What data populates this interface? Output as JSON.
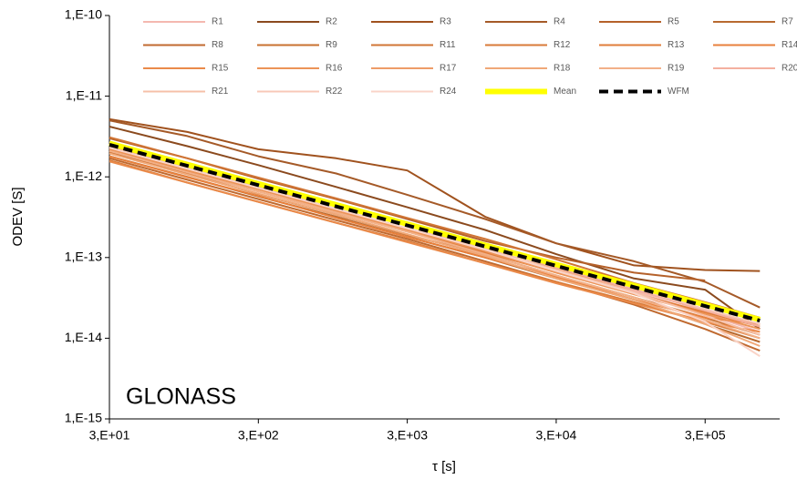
{
  "chart_data": {
    "type": "line",
    "annotation": "GLONASS",
    "x_label": "τ [s]",
    "y_label": "ODEV [S]",
    "xscale": "log",
    "yscale": "log",
    "grid": false,
    "xlim": [
      30,
      950000
    ],
    "ylim": [
      1e-15,
      1e-10
    ],
    "xticks": [
      {
        "value": 30,
        "label": "3,E+01"
      },
      {
        "value": 300,
        "label": "3,E+02"
      },
      {
        "value": 3000,
        "label": "3,E+03"
      },
      {
        "value": 30000,
        "label": "3,E+04"
      },
      {
        "value": 300000,
        "label": "3,E+05"
      }
    ],
    "yticks": [
      {
        "value": 1e-10,
        "label": "1,E-10"
      },
      {
        "value": 1e-11,
        "label": "1,E-11"
      },
      {
        "value": 1e-12,
        "label": "1,E-12"
      },
      {
        "value": 1e-13,
        "label": "1,E-13"
      },
      {
        "value": 1e-14,
        "label": "1,E-14"
      },
      {
        "value": 1e-15,
        "label": "1,E-15"
      }
    ],
    "x": [
      30,
      100,
      300,
      1000,
      3000,
      10000,
      30000,
      100000,
      300000,
      700000
    ],
    "series": [
      {
        "name": "R1",
        "color": "#f4b8b0",
        "values": [
          2.3e-12,
          1.3e-12,
          7.4e-13,
          4e-13,
          2.3e-13,
          1.3e-13,
          7e-14,
          3.8e-14,
          2e-14,
          1.2e-14
        ]
      },
      {
        "name": "R2",
        "color": "#8b4a1e",
        "values": [
          4.2e-12,
          2.4e-12,
          1.4e-12,
          7.5e-13,
          4.2e-13,
          2.2e-13,
          1.1e-13,
          5.5e-14,
          4e-14,
          1.3e-14
        ]
      },
      {
        "name": "R3",
        "color": "#a0521e",
        "values": [
          5.2e-12,
          3.6e-12,
          2.2e-12,
          1.7e-12,
          1.2e-12,
          3.2e-13,
          1.5e-13,
          8e-14,
          7e-14,
          6.8e-14
        ]
      },
      {
        "name": "R4",
        "color": "#a55a28",
        "values": [
          5e-12,
          3.2e-12,
          1.8e-12,
          1.1e-12,
          6e-13,
          3e-13,
          1.5e-13,
          9e-14,
          5e-14,
          2.4e-14
        ]
      },
      {
        "name": "R5",
        "color": "#b5612a",
        "values": [
          3e-12,
          1.7e-12,
          9.5e-13,
          5.3e-13,
          3e-13,
          1.6e-13,
          1e-13,
          6.5e-14,
          5.2e-14,
          null
        ]
      },
      {
        "name": "R7",
        "color": "#b86a30",
        "values": [
          1.8e-12,
          1e-12,
          5.7e-13,
          3.2e-13,
          1.8e-13,
          1e-13,
          5.5e-14,
          3e-14,
          1.5e-14,
          9e-15
        ]
      },
      {
        "name": "R8",
        "color": "#c06a30",
        "values": [
          1.7e-12,
          9.2e-13,
          5.3e-13,
          2.9e-13,
          1.7e-13,
          9e-14,
          5e-14,
          2.6e-14,
          1.3e-14,
          7e-15
        ]
      },
      {
        "name": "R9",
        "color": "#c87030",
        "values": [
          2e-12,
          1.1e-12,
          6.1e-13,
          3.4e-13,
          1.9e-13,
          1.1e-13,
          6e-14,
          3.2e-14,
          1.8e-14,
          1.1e-14
        ]
      },
      {
        "name": "R11",
        "color": "#d07535",
        "values": [
          3.1e-12,
          1.7e-12,
          9.8e-13,
          5.4e-13,
          3.1e-13,
          1.7e-13,
          9.5e-14,
          4.8e-14,
          2.8e-14,
          1.8e-14
        ]
      },
      {
        "name": "R12",
        "color": "#d87a38",
        "values": [
          1.6e-12,
          8.5e-13,
          4.9e-13,
          2.7e-13,
          1.6e-13,
          8.5e-14,
          5e-14,
          2.8e-14,
          1.6e-14,
          1e-14
        ]
      },
      {
        "name": "R13",
        "color": "#e07c3a",
        "values": [
          2.1e-12,
          1.15e-12,
          6.6e-13,
          3.6e-13,
          2.1e-13,
          1.15e-13,
          6.6e-14,
          3.6e-14,
          2.1e-14,
          1.4e-14
        ]
      },
      {
        "name": "R14",
        "color": "#e8803c",
        "values": [
          1.8e-12,
          9.9e-13,
          5.8e-13,
          3.1e-13,
          1.8e-13,
          1e-13,
          5.8e-14,
          3e-14,
          1.8e-14,
          1.5e-14
        ]
      },
      {
        "name": "R15",
        "color": "#ea8a4a",
        "values": [
          1.55e-12,
          8.5e-13,
          4.9e-13,
          2.7e-13,
          1.55e-13,
          8.5e-14,
          4.8e-14,
          2.7e-14,
          1.6e-14,
          1.2e-14
        ]
      },
      {
        "name": "R16",
        "color": "#ec9458",
        "values": [
          2.2e-12,
          1.2e-12,
          7e-13,
          3.8e-13,
          2.2e-13,
          1.2e-13,
          6.5e-14,
          3.5e-14,
          2e-14,
          1.3e-14
        ]
      },
      {
        "name": "R17",
        "color": "#ee9c68",
        "values": [
          2.35e-12,
          1.3e-12,
          7.4e-13,
          4e-13,
          2.3e-13,
          1.25e-13,
          7.2e-14,
          4e-14,
          2.2e-14,
          1.5e-14
        ]
      },
      {
        "name": "R18",
        "color": "#f0a878",
        "values": [
          1.95e-12,
          1.07e-12,
          6.2e-13,
          3.4e-13,
          1.95e-13,
          1.05e-13,
          5.5e-14,
          3e-14,
          1.5e-14,
          8e-15
        ]
      },
      {
        "name": "R19",
        "color": "#f2b088",
        "values": [
          2.1e-12,
          1.14e-12,
          6.6e-13,
          3.6e-13,
          2.1e-13,
          1.1e-13,
          6e-14,
          3.2e-14,
          1.7e-14,
          1e-14
        ]
      },
      {
        "name": "R20",
        "color": "#f4b0a0",
        "values": [
          2.6e-12,
          1.42e-12,
          8.2e-13,
          4.5e-13,
          2.6e-13,
          1.4e-13,
          7.5e-14,
          4e-14,
          2.2e-14,
          1.4e-14
        ]
      },
      {
        "name": "R21",
        "color": "#f6c0a8",
        "values": [
          2.5e-12,
          1.35e-12,
          7.8e-13,
          4.3e-13,
          2.5e-13,
          1.3e-13,
          7e-14,
          3.7e-14,
          1.9e-14,
          1.1e-14
        ]
      },
      {
        "name": "R22",
        "color": "#f8c8b8",
        "values": [
          2.7e-12,
          1.5e-12,
          8.6e-13,
          4.7e-13,
          2.7e-13,
          1.5e-13,
          8e-14,
          4.2e-14,
          2.3e-14,
          1.5e-14
        ]
      },
      {
        "name": "R24",
        "color": "#fad4c8",
        "values": [
          2.3e-12,
          1.27e-12,
          7.3e-13,
          4e-13,
          2.3e-13,
          1.25e-13,
          6.8e-14,
          3.6e-14,
          1.6e-14,
          6e-15
        ]
      },
      {
        "name": "Mean",
        "color": "#ffff00",
        "width": 6,
        "values": [
          2.6e-12,
          1.42e-12,
          8.2e-13,
          4.5e-13,
          2.6e-13,
          1.42e-13,
          8.2e-14,
          4.5e-14,
          2.6e-14,
          1.7e-14
        ]
      },
      {
        "name": "WFM",
        "color": "#000000",
        "width": 4,
        "dash": true,
        "values": [
          2.5e-12,
          1.37e-12,
          7.9e-13,
          4.3e-13,
          2.5e-13,
          1.37e-13,
          7.9e-14,
          4.3e-14,
          2.5e-14,
          1.65e-14
        ]
      }
    ]
  }
}
